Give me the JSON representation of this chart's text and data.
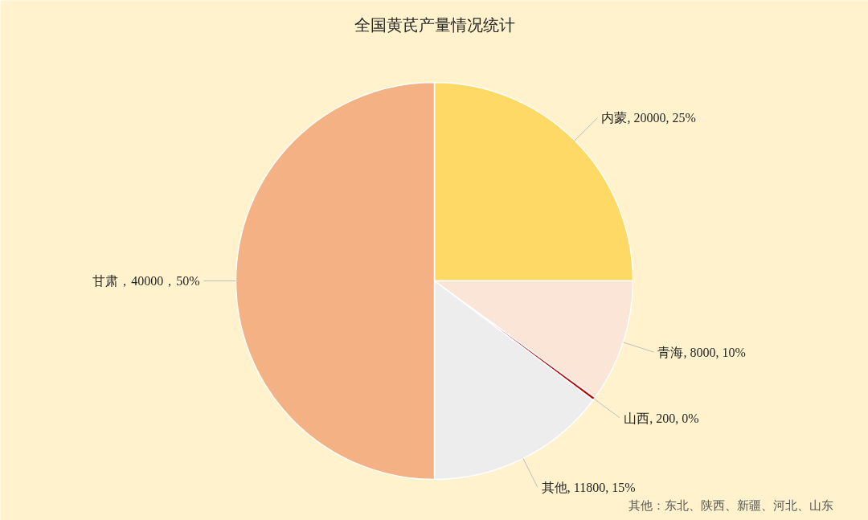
{
  "chart_data": {
    "type": "pie",
    "title": "全国黄芪产量情况统计",
    "categories": [
      "内蒙",
      "青海",
      "山西",
      "其他",
      "甘肃"
    ],
    "values": [
      20000,
      8000,
      200,
      11800,
      40000
    ],
    "colors": [
      "#ffd966",
      "#fbe5d6",
      "#c00000",
      "#ededed",
      "#f4b183"
    ],
    "value_labels": [
      ", 20000, 25%",
      ", 8000, 10%",
      ", 200, 0%",
      ", 11800, 15%",
      "，40000，50%"
    ],
    "annotations": [
      "其他：东北、陕西、新疆、河北、山东"
    ]
  }
}
